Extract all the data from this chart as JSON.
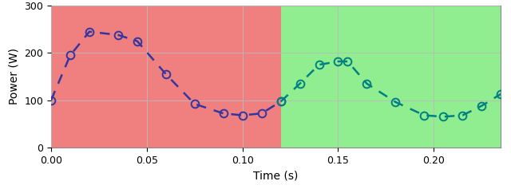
{
  "title": "",
  "xlabel": "Time (s)",
  "ylabel": "Power (W)",
  "xlim": [
    0,
    0.235
  ],
  "ylim": [
    0,
    300
  ],
  "red_region": [
    0,
    0.12
  ],
  "green_region": [
    0.12,
    0.235
  ],
  "red_color": "#F08080",
  "green_color": "#90EE90",
  "red_alpha": 1.0,
  "green_alpha": 1.0,
  "segment1_x": [
    0.0,
    0.01,
    0.02,
    0.035,
    0.045,
    0.06,
    0.075,
    0.09,
    0.1,
    0.11,
    0.12
  ],
  "segment1_y": [
    100,
    195,
    245,
    238,
    225,
    155,
    92,
    72,
    68,
    72,
    97
  ],
  "segment2_x": [
    0.12,
    0.13,
    0.14,
    0.15,
    0.155,
    0.165,
    0.18,
    0.195,
    0.205,
    0.215,
    0.225,
    0.235
  ],
  "segment2_y": [
    97,
    135,
    175,
    182,
    182,
    135,
    96,
    68,
    65,
    68,
    88,
    113
  ],
  "seg1_line_color": "#3535A0",
  "seg1_marker_color": "#3535A0",
  "seg2_line_color": "#008080",
  "seg2_marker_color": "#008080",
  "line_width": 1.8,
  "marker_size": 7,
  "grid_color": "#bbbbbb",
  "yticks": [
    0,
    100,
    200,
    300
  ],
  "xticks": [
    0,
    0.05,
    0.1,
    0.15,
    0.2
  ]
}
